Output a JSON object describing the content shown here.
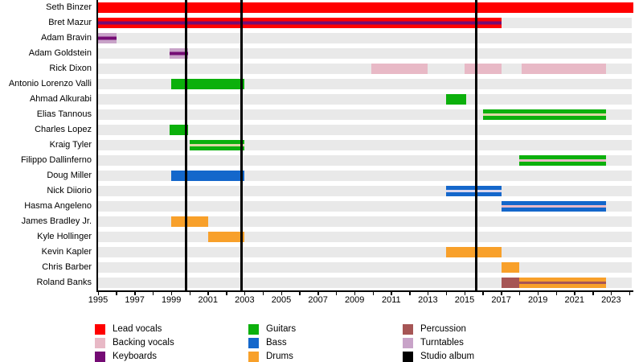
{
  "chart_data": {
    "type": "bar",
    "subtype": "band-members-gantt-timeline",
    "title": "",
    "xlabel": "",
    "ylabel": "",
    "x_axis": {
      "start": 1995,
      "end": 2024,
      "tick_interval_years": 1,
      "label_years": [
        1995,
        1997,
        1999,
        2001,
        2003,
        2005,
        2007,
        2009,
        2011,
        2013,
        2015,
        2017,
        2019,
        2021,
        2023
      ]
    },
    "members": [
      {
        "name": "Seth Binzer",
        "segments": [
          {
            "start": 1995,
            "end": 2024.2,
            "fill": "lead_vocals"
          }
        ]
      },
      {
        "name": "Bret Mazur",
        "segments": [
          {
            "start": 1995,
            "end": 2017,
            "fill": "lead_vocals",
            "stripe": "keyboards"
          }
        ]
      },
      {
        "name": "Adam Bravin",
        "segments": [
          {
            "start": 1995,
            "end": 1996,
            "fill": "turntables",
            "stripe": "keyboards"
          }
        ]
      },
      {
        "name": "Adam Goldstein",
        "segments": [
          {
            "start": 1998.9,
            "end": 1999.9,
            "fill": "turntables",
            "stripe": "keyboards"
          }
        ]
      },
      {
        "name": "Rick Dixon",
        "segments": [
          {
            "start": 2009.9,
            "end": 2013.0,
            "fill": "backing_vocals"
          },
          {
            "start": 2015,
            "end": 2017,
            "fill": "backing_vocals"
          },
          {
            "start": 2018.1,
            "end": 2022.7,
            "fill": "backing_vocals"
          }
        ]
      },
      {
        "name": "Antonio Lorenzo Valli",
        "segments": [
          {
            "start": 1999,
            "end": 2003,
            "fill": "guitars"
          }
        ]
      },
      {
        "name": "Ahmad Alkurabi",
        "segments": [
          {
            "start": 2014,
            "end": 2015.1,
            "fill": "guitars"
          }
        ]
      },
      {
        "name": "Elias Tannous",
        "segments": [
          {
            "start": 2016,
            "end": 2022.7,
            "fill": "guitars",
            "stripe": "wheat_stripe"
          }
        ]
      },
      {
        "name": "Charles Lopez",
        "segments": [
          {
            "start": 1998.9,
            "end": 1999.9,
            "fill": "guitars"
          }
        ]
      },
      {
        "name": "Kraig Tyler",
        "segments": [
          {
            "start": 2000,
            "end": 2003,
            "fill": "guitars",
            "stripe": "wheat_stripe"
          }
        ]
      },
      {
        "name": "Filippo Dallinferno",
        "segments": [
          {
            "start": 2018,
            "end": 2022.7,
            "fill": "guitars",
            "stripe": "backing_vocals"
          }
        ]
      },
      {
        "name": "Doug Miller",
        "segments": [
          {
            "start": 1999,
            "end": 2003,
            "fill": "bass"
          }
        ]
      },
      {
        "name": "Nick Diiorio",
        "segments": [
          {
            "start": 2014,
            "end": 2017,
            "fill": "bass",
            "stripe": "lavender_stripe"
          }
        ]
      },
      {
        "name": "Hasma Angeleno",
        "segments": [
          {
            "start": 2017,
            "end": 2022.7,
            "fill": "bass",
            "stripe": "backing_vocals"
          }
        ]
      },
      {
        "name": "James Bradley Jr.",
        "segments": [
          {
            "start": 1999,
            "end": 2001,
            "fill": "drums"
          }
        ]
      },
      {
        "name": "Kyle Hollinger",
        "segments": [
          {
            "start": 2001,
            "end": 2003,
            "fill": "drums"
          }
        ]
      },
      {
        "name": "Kevin Kapler",
        "segments": [
          {
            "start": 2014,
            "end": 2017,
            "fill": "drums"
          }
        ]
      },
      {
        "name": "Chris Barber",
        "segments": [
          {
            "start": 2017,
            "end": 2018,
            "fill": "drums"
          }
        ]
      },
      {
        "name": "Roland Banks",
        "segments": [
          {
            "start": 2017,
            "end": 2018,
            "fill": "percussion"
          },
          {
            "start": 2018,
            "end": 2022.7,
            "fill": "drums",
            "stripe": "percussion"
          }
        ]
      }
    ],
    "studio_album_years": [
      1999.8,
      2002.85,
      2015.65
    ],
    "legend": [
      {
        "label": "Lead vocals",
        "color": "lead_vocals"
      },
      {
        "label": "Backing vocals",
        "color": "backing_vocals"
      },
      {
        "label": "Keyboards",
        "color": "keyboards"
      },
      {
        "label": "Guitars",
        "color": "guitars"
      },
      {
        "label": "Bass",
        "color": "bass"
      },
      {
        "label": "Drums",
        "color": "drums"
      },
      {
        "label": "Percussion",
        "color": "percussion"
      },
      {
        "label": "Turntables",
        "color": "turntables"
      },
      {
        "label": "Studio album",
        "color": "studio_album"
      }
    ],
    "colors": {
      "lead_vocals": "#ff0000",
      "backing_vocals": "#e8b9c6",
      "keyboards": "#740b74",
      "guitars": "#0cb00c",
      "bass": "#1467cb",
      "drums": "#f8a02a",
      "percussion": "#a65555",
      "turntables": "#c8a3c8",
      "studio_album": "#000000",
      "wheat_stripe": "#ddd7a4",
      "lavender_stripe": "#dad7ee",
      "row_band": "#e9e9e9"
    }
  }
}
